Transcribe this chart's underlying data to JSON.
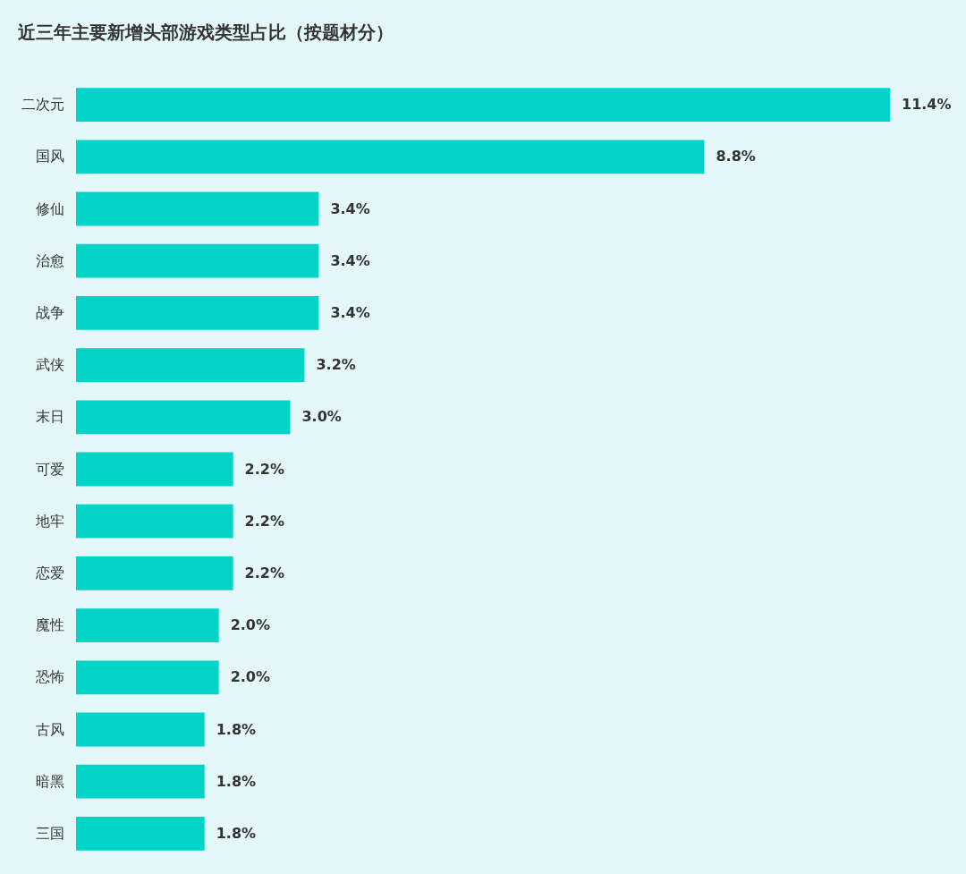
{
  "chart_data": {
    "type": "bar",
    "orientation": "horizontal",
    "title": "近三年主要新增头部游戏类型占比（按题材分）",
    "categories": [
      "二次元",
      "国风",
      "修仙",
      "治愈",
      "战争",
      "武侠",
      "末日",
      "可爱",
      "地牢",
      "恋爱",
      "魔性",
      "恐怖",
      "古风",
      "暗黑",
      "三国"
    ],
    "values": [
      11.4,
      8.8,
      3.4,
      3.4,
      3.4,
      3.2,
      3.0,
      2.2,
      2.2,
      2.2,
      2.0,
      2.0,
      1.8,
      1.8,
      1.8
    ],
    "value_labels": [
      "11.4%",
      "8.8%",
      "3.4%",
      "3.4%",
      "3.4%",
      "3.2%",
      "3.0%",
      "2.2%",
      "2.2%",
      "2.2%",
      "2.0%",
      "2.0%",
      "1.8%",
      "1.8%",
      "1.8%"
    ],
    "color": "#02d4c8",
    "xlim": [
      0,
      11.4
    ],
    "tick_labels": "y"
  }
}
